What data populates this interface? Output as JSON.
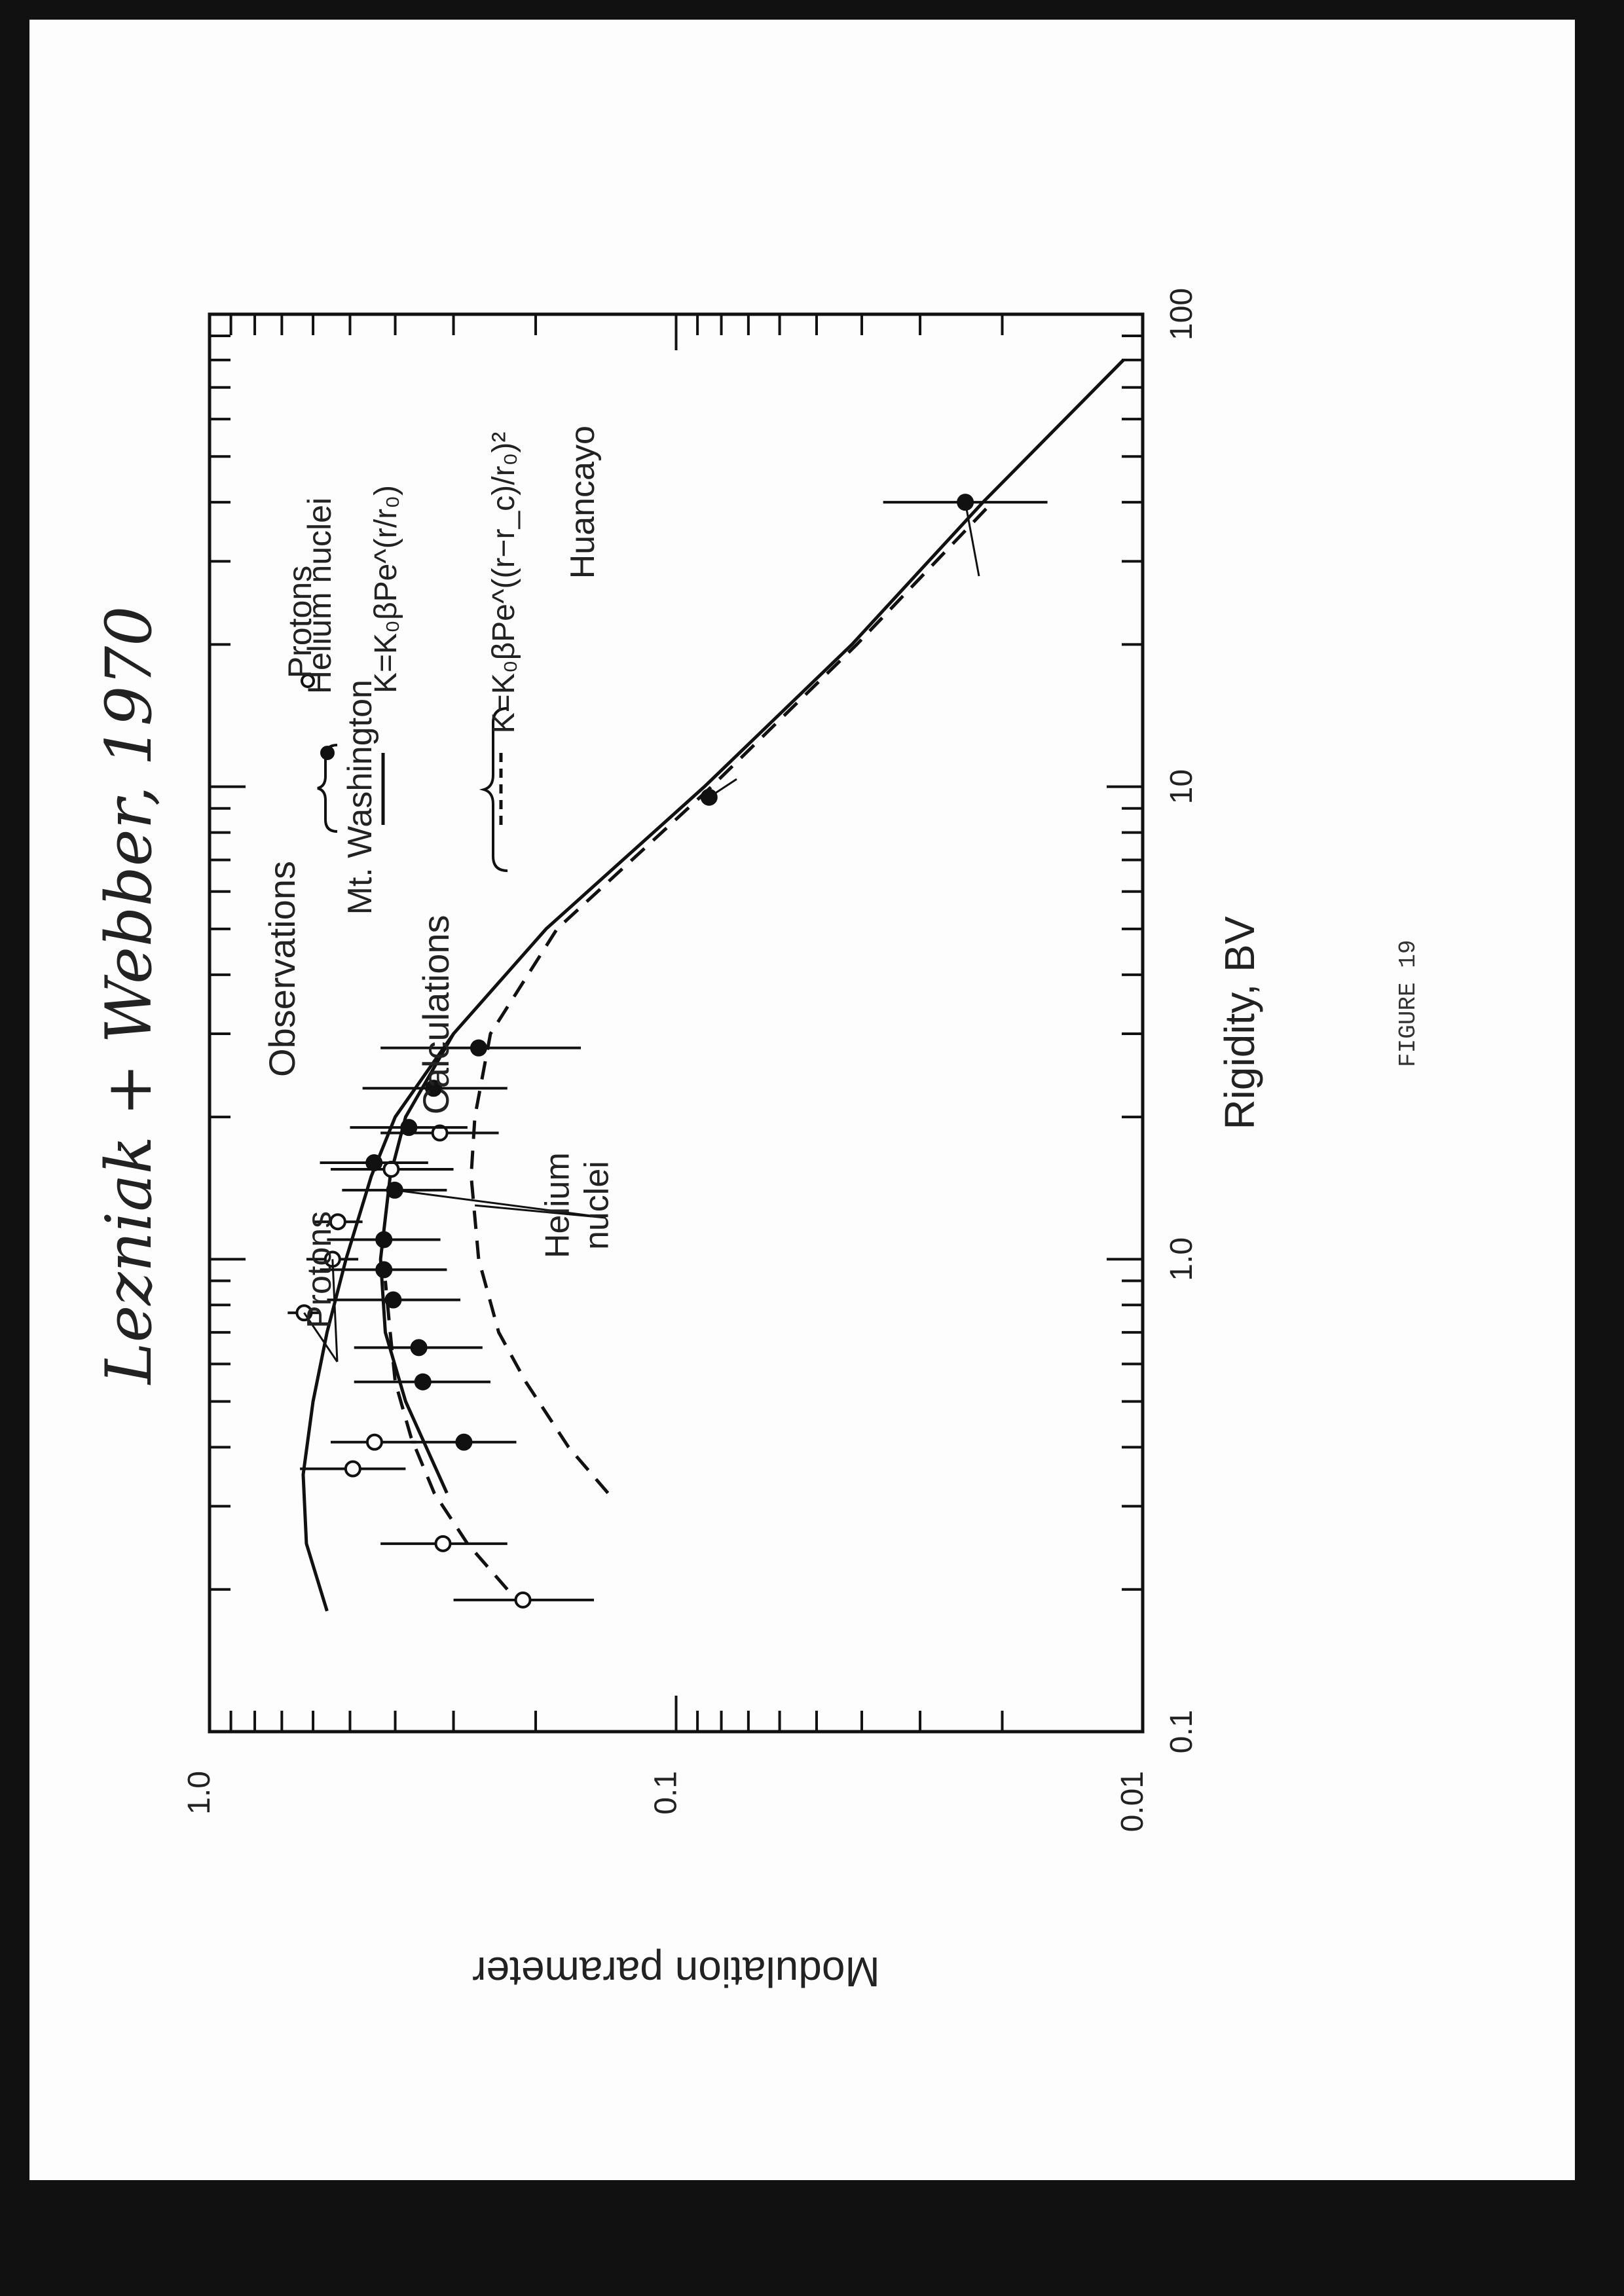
{
  "header": {
    "handwritten_title": "Lezniak + Webber, 1970"
  },
  "caption": "FIGURE 19",
  "chart_data": {
    "type": "scatter",
    "xlabel": "Rigidity, BV",
    "ylabel": "Modulation parameter",
    "x_scale": "log",
    "y_scale": "log",
    "xlim": [
      0.1,
      100
    ],
    "ylim": [
      0.01,
      1.0
    ],
    "x_tick_labels": [
      "0.1",
      "1.0",
      "10",
      "100"
    ],
    "y_tick_labels": [
      "0.01",
      "0.1",
      "1.0"
    ],
    "x_tick_values": [
      0.1,
      1.0,
      10,
      100
    ],
    "y_tick_values": [
      0.01,
      0.1,
      1.0
    ],
    "legend": {
      "observations_label": "Observations",
      "protons_label": "Protons",
      "helium_label": "Helium nuclei",
      "calculations_label": "Calculations",
      "solid_formula": "K=K₀βPe^(r/r₀)",
      "dashed_formula": "K=K₀βPe^((r−r_c)/r₀)²"
    },
    "annotations": [
      {
        "text": "Protons",
        "x": 0.95,
        "y": 0.55
      },
      {
        "text": "Helium",
        "x": 1.3,
        "y": 0.17
      },
      {
        "text": "nuclei",
        "x": 1.3,
        "y": 0.14
      },
      {
        "text": "Mt. Washington",
        "x": 9.5,
        "y": 0.45
      },
      {
        "text": "Huancayo",
        "x": 40,
        "y": 0.15
      }
    ],
    "series": [
      {
        "name": "Protons",
        "marker": "open-circle",
        "points": [
          {
            "x": 0.19,
            "y": 0.213,
            "err": [
              0.15,
              0.3
            ]
          },
          {
            "x": 0.25,
            "y": 0.316,
            "err": [
              0.23,
              0.43
            ]
          },
          {
            "x": 0.36,
            "y": 0.493,
            "err": [
              0.38,
              0.64
            ]
          },
          {
            "x": 0.41,
            "y": 0.443,
            "err": [
              0.36,
              0.55
            ]
          },
          {
            "x": 0.77,
            "y": 0.627,
            "err": [
              0.58,
              0.68
            ]
          },
          {
            "x": 1.0,
            "y": 0.545,
            "err": [
              0.48,
              0.62
            ]
          },
          {
            "x": 1.2,
            "y": 0.531,
            "err": [
              0.47,
              0.6
            ]
          },
          {
            "x": 1.55,
            "y": 0.408,
            "err": [
              0.3,
              0.55
            ]
          },
          {
            "x": 1.85,
            "y": 0.321,
            "err": [
              0.24,
              0.43
            ]
          }
        ]
      },
      {
        "name": "Helium nuclei",
        "marker": "filled-circle",
        "points": [
          {
            "x": 0.41,
            "y": 0.285,
            "err": [
              0.22,
              0.37
            ]
          },
          {
            "x": 0.55,
            "y": 0.349,
            "err": [
              0.25,
              0.49
            ]
          },
          {
            "x": 0.65,
            "y": 0.356,
            "err": [
              0.26,
              0.49
            ]
          },
          {
            "x": 0.82,
            "y": 0.404,
            "err": [
              0.29,
              0.56
            ]
          },
          {
            "x": 0.95,
            "y": 0.423,
            "err": [
              0.31,
              0.58
            ]
          },
          {
            "x": 1.1,
            "y": 0.423,
            "err": [
              0.32,
              0.56
            ]
          },
          {
            "x": 1.4,
            "y": 0.401,
            "err": [
              0.31,
              0.52
            ]
          },
          {
            "x": 1.6,
            "y": 0.444,
            "err": [
              0.34,
              0.58
            ]
          },
          {
            "x": 1.9,
            "y": 0.374,
            "err": [
              0.28,
              0.5
            ]
          },
          {
            "x": 2.3,
            "y": 0.331,
            "err": [
              0.23,
              0.47
            ]
          },
          {
            "x": 2.8,
            "y": 0.265,
            "err": [
              0.16,
              0.43
            ]
          },
          {
            "x": 9.5,
            "y": 0.085
          },
          {
            "x": 40,
            "y": 0.024,
            "err": [
              0.016,
              0.036
            ]
          }
        ]
      }
    ],
    "curves": [
      {
        "name": "Protons calc",
        "style": "solid",
        "x": [
          0.18,
          0.25,
          0.35,
          0.5,
          0.7,
          1.0,
          1.5,
          2.0,
          3.0,
          5.0,
          10,
          20,
          40,
          80
        ],
        "y": [
          0.56,
          0.62,
          0.63,
          0.6,
          0.56,
          0.51,
          0.45,
          0.4,
          0.3,
          0.19,
          0.087,
          0.042,
          0.022,
          0.011
        ]
      },
      {
        "name": "Helium calc solid",
        "style": "solid",
        "x": [
          0.32,
          0.5,
          0.7,
          1.0,
          1.5,
          2.0,
          3.0
        ],
        "y": [
          0.31,
          0.38,
          0.42,
          0.43,
          0.41,
          0.38,
          0.3
        ]
      },
      {
        "name": "Protons calc dashed",
        "style": "dashed",
        "x": [
          0.2,
          0.25,
          0.32,
          0.42,
          0.55,
          0.7,
          0.9
        ],
        "y": [
          0.23,
          0.28,
          0.33,
          0.37,
          0.4,
          0.41,
          0.42
        ]
      },
      {
        "name": "Helium calc dashed",
        "style": "dashed",
        "x": [
          0.32,
          0.4,
          0.55,
          0.7,
          1.0,
          1.5,
          2.0,
          3.0,
          5.0,
          10,
          20,
          40
        ],
        "y": [
          0.14,
          0.17,
          0.21,
          0.24,
          0.265,
          0.275,
          0.27,
          0.25,
          0.18,
          0.084,
          0.041,
          0.021
        ]
      }
    ]
  }
}
